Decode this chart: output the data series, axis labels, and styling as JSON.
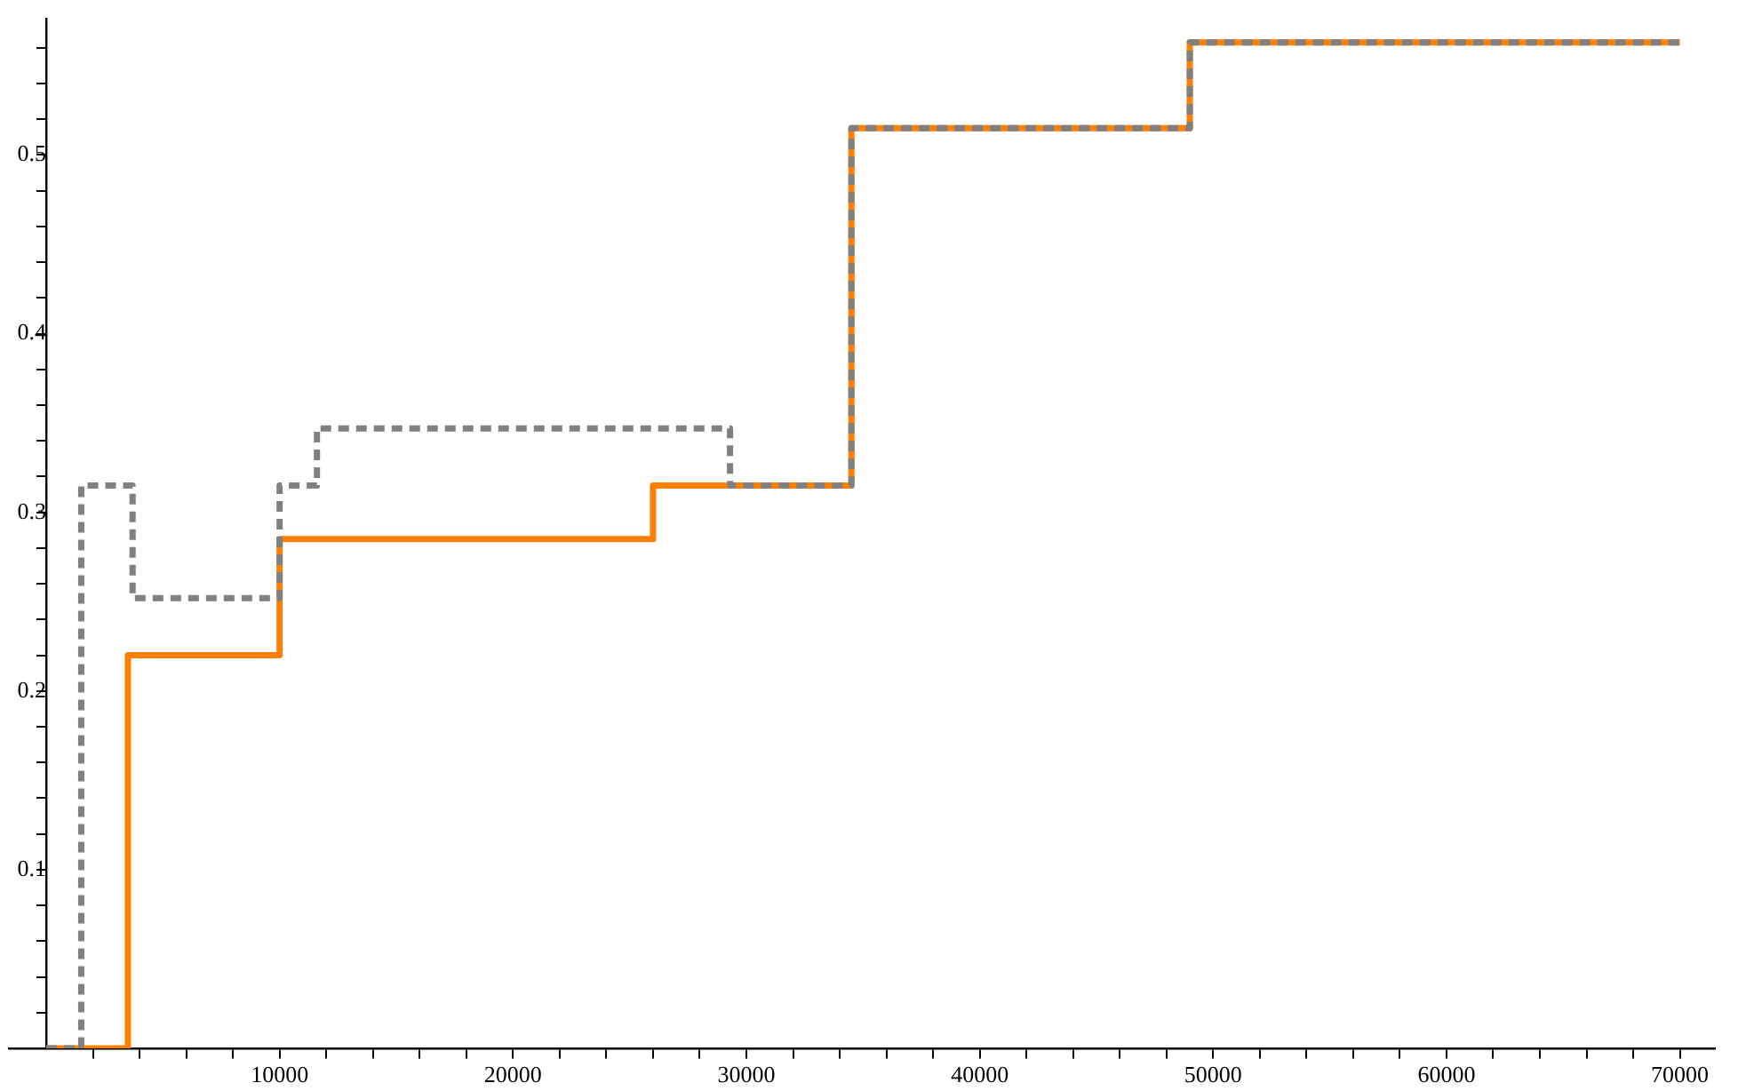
{
  "chart_data": {
    "type": "step",
    "xlim": [
      -1600,
      71500
    ],
    "ylim": [
      0,
      0.576
    ],
    "xticks": [
      {
        "value": 2000,
        "label": null
      },
      {
        "value": 4000,
        "label": null
      },
      {
        "value": 6000,
        "label": null
      },
      {
        "value": 8000,
        "label": null
      },
      10000,
      {
        "value": 12000,
        "label": null
      },
      {
        "value": 14000,
        "label": null
      },
      {
        "value": 16000,
        "label": null
      },
      {
        "value": 18000,
        "label": null
      },
      20000,
      {
        "value": 22000,
        "label": null
      },
      {
        "value": 24000,
        "label": null
      },
      {
        "value": 26000,
        "label": null
      },
      {
        "value": 28000,
        "label": null
      },
      30000,
      {
        "value": 32000,
        "label": null
      },
      {
        "value": 34000,
        "label": null
      },
      {
        "value": 36000,
        "label": null
      },
      {
        "value": 38000,
        "label": null
      },
      40000,
      {
        "value": 42000,
        "label": null
      },
      {
        "value": 44000,
        "label": null
      },
      {
        "value": 46000,
        "label": null
      },
      {
        "value": 48000,
        "label": null
      },
      50000,
      {
        "value": 52000,
        "label": null
      },
      {
        "value": 54000,
        "label": null
      },
      {
        "value": 56000,
        "label": null
      },
      {
        "value": 58000,
        "label": null
      },
      60000,
      {
        "value": 62000,
        "label": null
      },
      {
        "value": 64000,
        "label": null
      },
      {
        "value": 66000,
        "label": null
      },
      {
        "value": 68000,
        "label": null
      },
      70000
    ],
    "yticks": [
      {
        "value": 0.02,
        "label": null
      },
      {
        "value": 0.04,
        "label": null
      },
      {
        "value": 0.06,
        "label": null
      },
      {
        "value": 0.08,
        "label": null
      },
      0.1,
      {
        "value": 0.12,
        "label": null
      },
      {
        "value": 0.14,
        "label": null
      },
      {
        "value": 0.16,
        "label": null
      },
      {
        "value": 0.18,
        "label": null
      },
      0.2,
      {
        "value": 0.22,
        "label": null
      },
      {
        "value": 0.24,
        "label": null
      },
      {
        "value": 0.26,
        "label": null
      },
      {
        "value": 0.28,
        "label": null
      },
      0.3,
      {
        "value": 0.32,
        "label": null
      },
      {
        "value": 0.34,
        "label": null
      },
      {
        "value": 0.36,
        "label": null
      },
      {
        "value": 0.38,
        "label": null
      },
      0.4,
      {
        "value": 0.42,
        "label": null
      },
      {
        "value": 0.44,
        "label": null
      },
      {
        "value": 0.46,
        "label": null
      },
      {
        "value": 0.48,
        "label": null
      },
      0.5,
      {
        "value": 0.52,
        "label": null
      },
      {
        "value": 0.54,
        "label": null
      },
      {
        "value": 0.56,
        "label": null
      }
    ],
    "grid": false,
    "legend": false,
    "marker": "none",
    "series": [
      {
        "color": "#ff8000",
        "line_style": "solid",
        "x": [
          0,
          3500,
          10000,
          26000,
          34500,
          49000,
          70000
        ],
        "values": [
          0,
          0.22,
          0.285,
          0.315,
          0.515,
          0.563,
          0.563
        ]
      },
      {
        "color": "#808080",
        "line_style": "dashed",
        "x": [
          0,
          1500,
          3700,
          10000,
          11600,
          29300,
          34500,
          49000,
          70000
        ],
        "values": [
          0,
          0.315,
          0.252,
          0.315,
          0.347,
          0.315,
          0.515,
          0.563,
          0.563
        ]
      }
    ]
  }
}
